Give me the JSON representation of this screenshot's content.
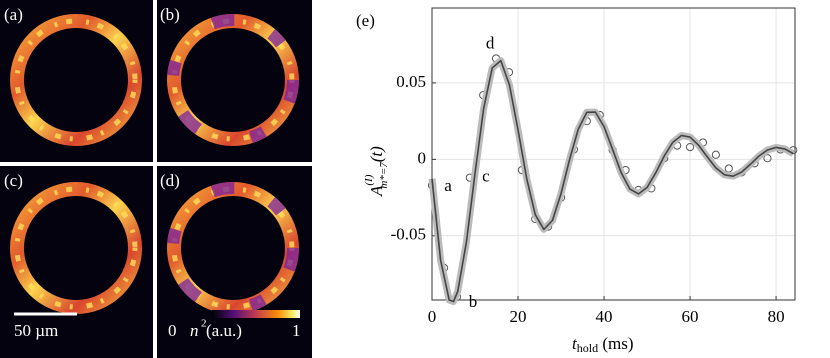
{
  "panels": {
    "labels": [
      "(a)",
      "(b)",
      "(c)",
      "(d)"
    ],
    "scalebar": "50 µm",
    "colorbar": {
      "min": "0",
      "var": "n",
      "pow": "2",
      "unit": " (a.u.)",
      "max": "1"
    }
  },
  "chart_data": {
    "type": "scatter",
    "panel_label": "(e)",
    "xlabel": {
      "main": "t",
      "sub": "hold",
      "tail": " (ms)"
    },
    "ylabel": {
      "main": "A",
      "sup": "(I)",
      "sub": "m*=7",
      "tail": "(t)"
    },
    "annotations": [
      "a",
      "b",
      "c",
      "d"
    ],
    "xlim": [
      0,
      84.4
    ],
    "ylim": [
      -0.092,
      0.099
    ],
    "xticks": [
      0,
      20,
      40,
      60,
      80
    ],
    "yticks": [
      -0.05,
      0,
      0.05
    ],
    "grid": true,
    "series": [
      {
        "color": "#555555",
        "x": [
          0,
          2.8,
          5.8,
          8.8,
          11.9,
          14.9,
          17.9,
          20.9,
          24,
          27,
          30,
          33,
          36,
          39,
          42,
          45,
          48,
          51,
          54,
          57,
          60,
          63,
          66,
          69,
          72,
          75,
          78,
          81,
          84
        ],
        "values": [
          -0.017,
          -0.071,
          -0.09,
          -0.012,
          0.042,
          0.066,
          0.057,
          -0.007,
          -0.039,
          -0.044,
          -0.025,
          0.0065,
          0.025,
          0.029,
          0.006,
          -0.007,
          -0.02,
          -0.019,
          0.0007,
          0.009,
          0.008,
          0.011,
          0.003,
          -0.006,
          -0.0085,
          -0.0026,
          0.0007,
          0.0065,
          0.006
        ]
      },
      {
        "type": "line",
        "color": "#444444",
        "x": [
          0,
          2,
          4,
          5,
          6,
          8,
          10,
          12,
          14,
          16,
          18,
          20,
          22,
          24,
          26,
          28,
          30,
          32,
          34,
          36,
          38,
          40,
          42,
          44,
          46,
          48,
          50,
          52,
          54,
          56,
          58,
          60,
          62,
          64,
          66,
          68,
          70,
          72,
          74,
          76,
          78,
          80,
          82,
          84
        ],
        "values": [
          -0.0127,
          -0.066,
          -0.092,
          -0.093,
          -0.0862,
          -0.0541,
          -0.0092,
          0.0331,
          0.0598,
          0.0646,
          0.0487,
          0.0193,
          -0.0123,
          -0.0361,
          -0.0458,
          -0.04,
          -0.0224,
          0,
          0.0197,
          0.0308,
          0.0309,
          0.0214,
          0.0064,
          -0.0088,
          -0.0194,
          -0.0226,
          -0.0184,
          -0.0089,
          0.0022,
          0.0112,
          0.0156,
          0.0146,
          0.0092,
          0.0016,
          -0.0056,
          -0.0101,
          -0.011,
          -0.0083,
          -0.0033,
          0.0021,
          0.0061,
          0.0078,
          0.0068,
          0.0038
        ]
      }
    ]
  }
}
